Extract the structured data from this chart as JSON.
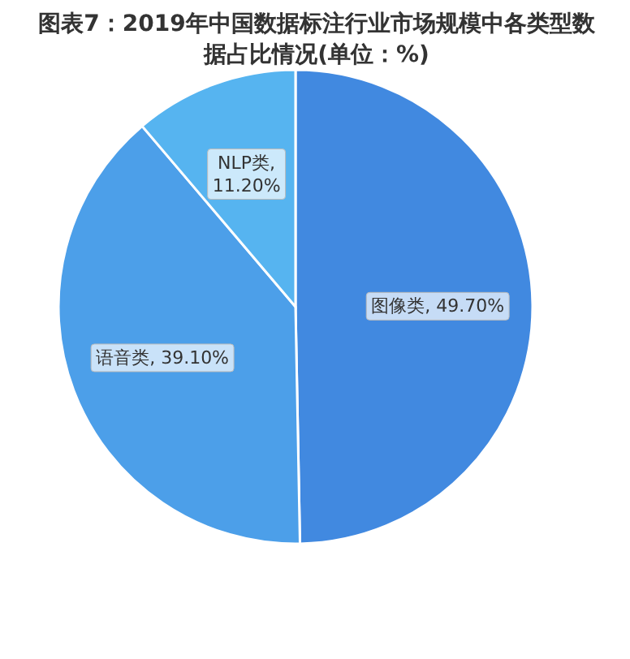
{
  "chart_data": {
    "type": "pie",
    "title": "图表7：2019年中国数据标注行业市场规模中各类型数据占比情况(单位：%)",
    "categories": [
      "图像类",
      "语音类",
      "NLP类"
    ],
    "values": [
      49.7,
      39.1,
      11.2
    ],
    "colors": [
      "#4189e0",
      "#4c9fe9",
      "#56b4f0"
    ],
    "value_labels": [
      ", 49.70%",
      ", 39.10%",
      ", 11.20%"
    ]
  }
}
